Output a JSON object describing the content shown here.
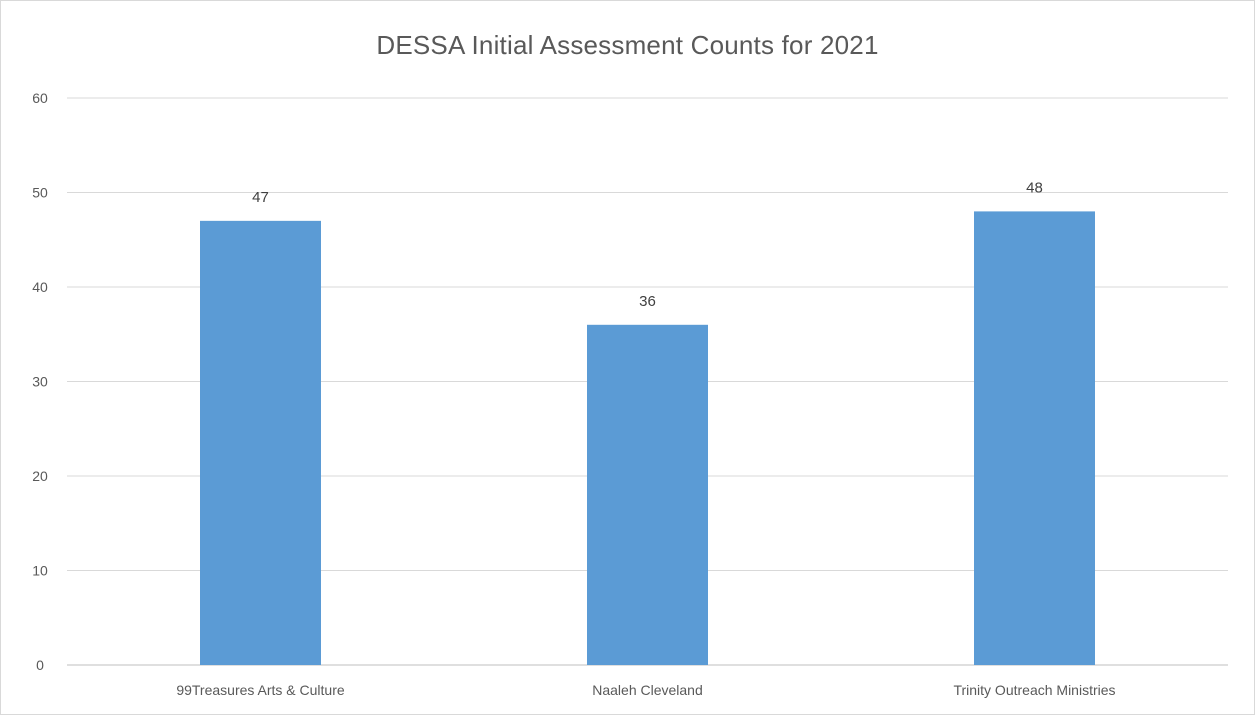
{
  "chart_data": {
    "type": "bar",
    "title": "DESSA Initial Assessment Counts for 2021",
    "categories": [
      "99Treasures Arts & Culture",
      "Naaleh Cleveland",
      "Trinity Outreach Ministries"
    ],
    "values": [
      47,
      36,
      48
    ],
    "data_labels": [
      "47",
      "36",
      "48"
    ],
    "ylim": [
      0,
      60
    ],
    "yticks": [
      0,
      10,
      20,
      30,
      40,
      50,
      60
    ],
    "xlabel": "",
    "ylabel": "",
    "grid": true,
    "legend": "none",
    "bar_color": "#5b9bd5",
    "gridline_color": "#d9d9d9"
  }
}
